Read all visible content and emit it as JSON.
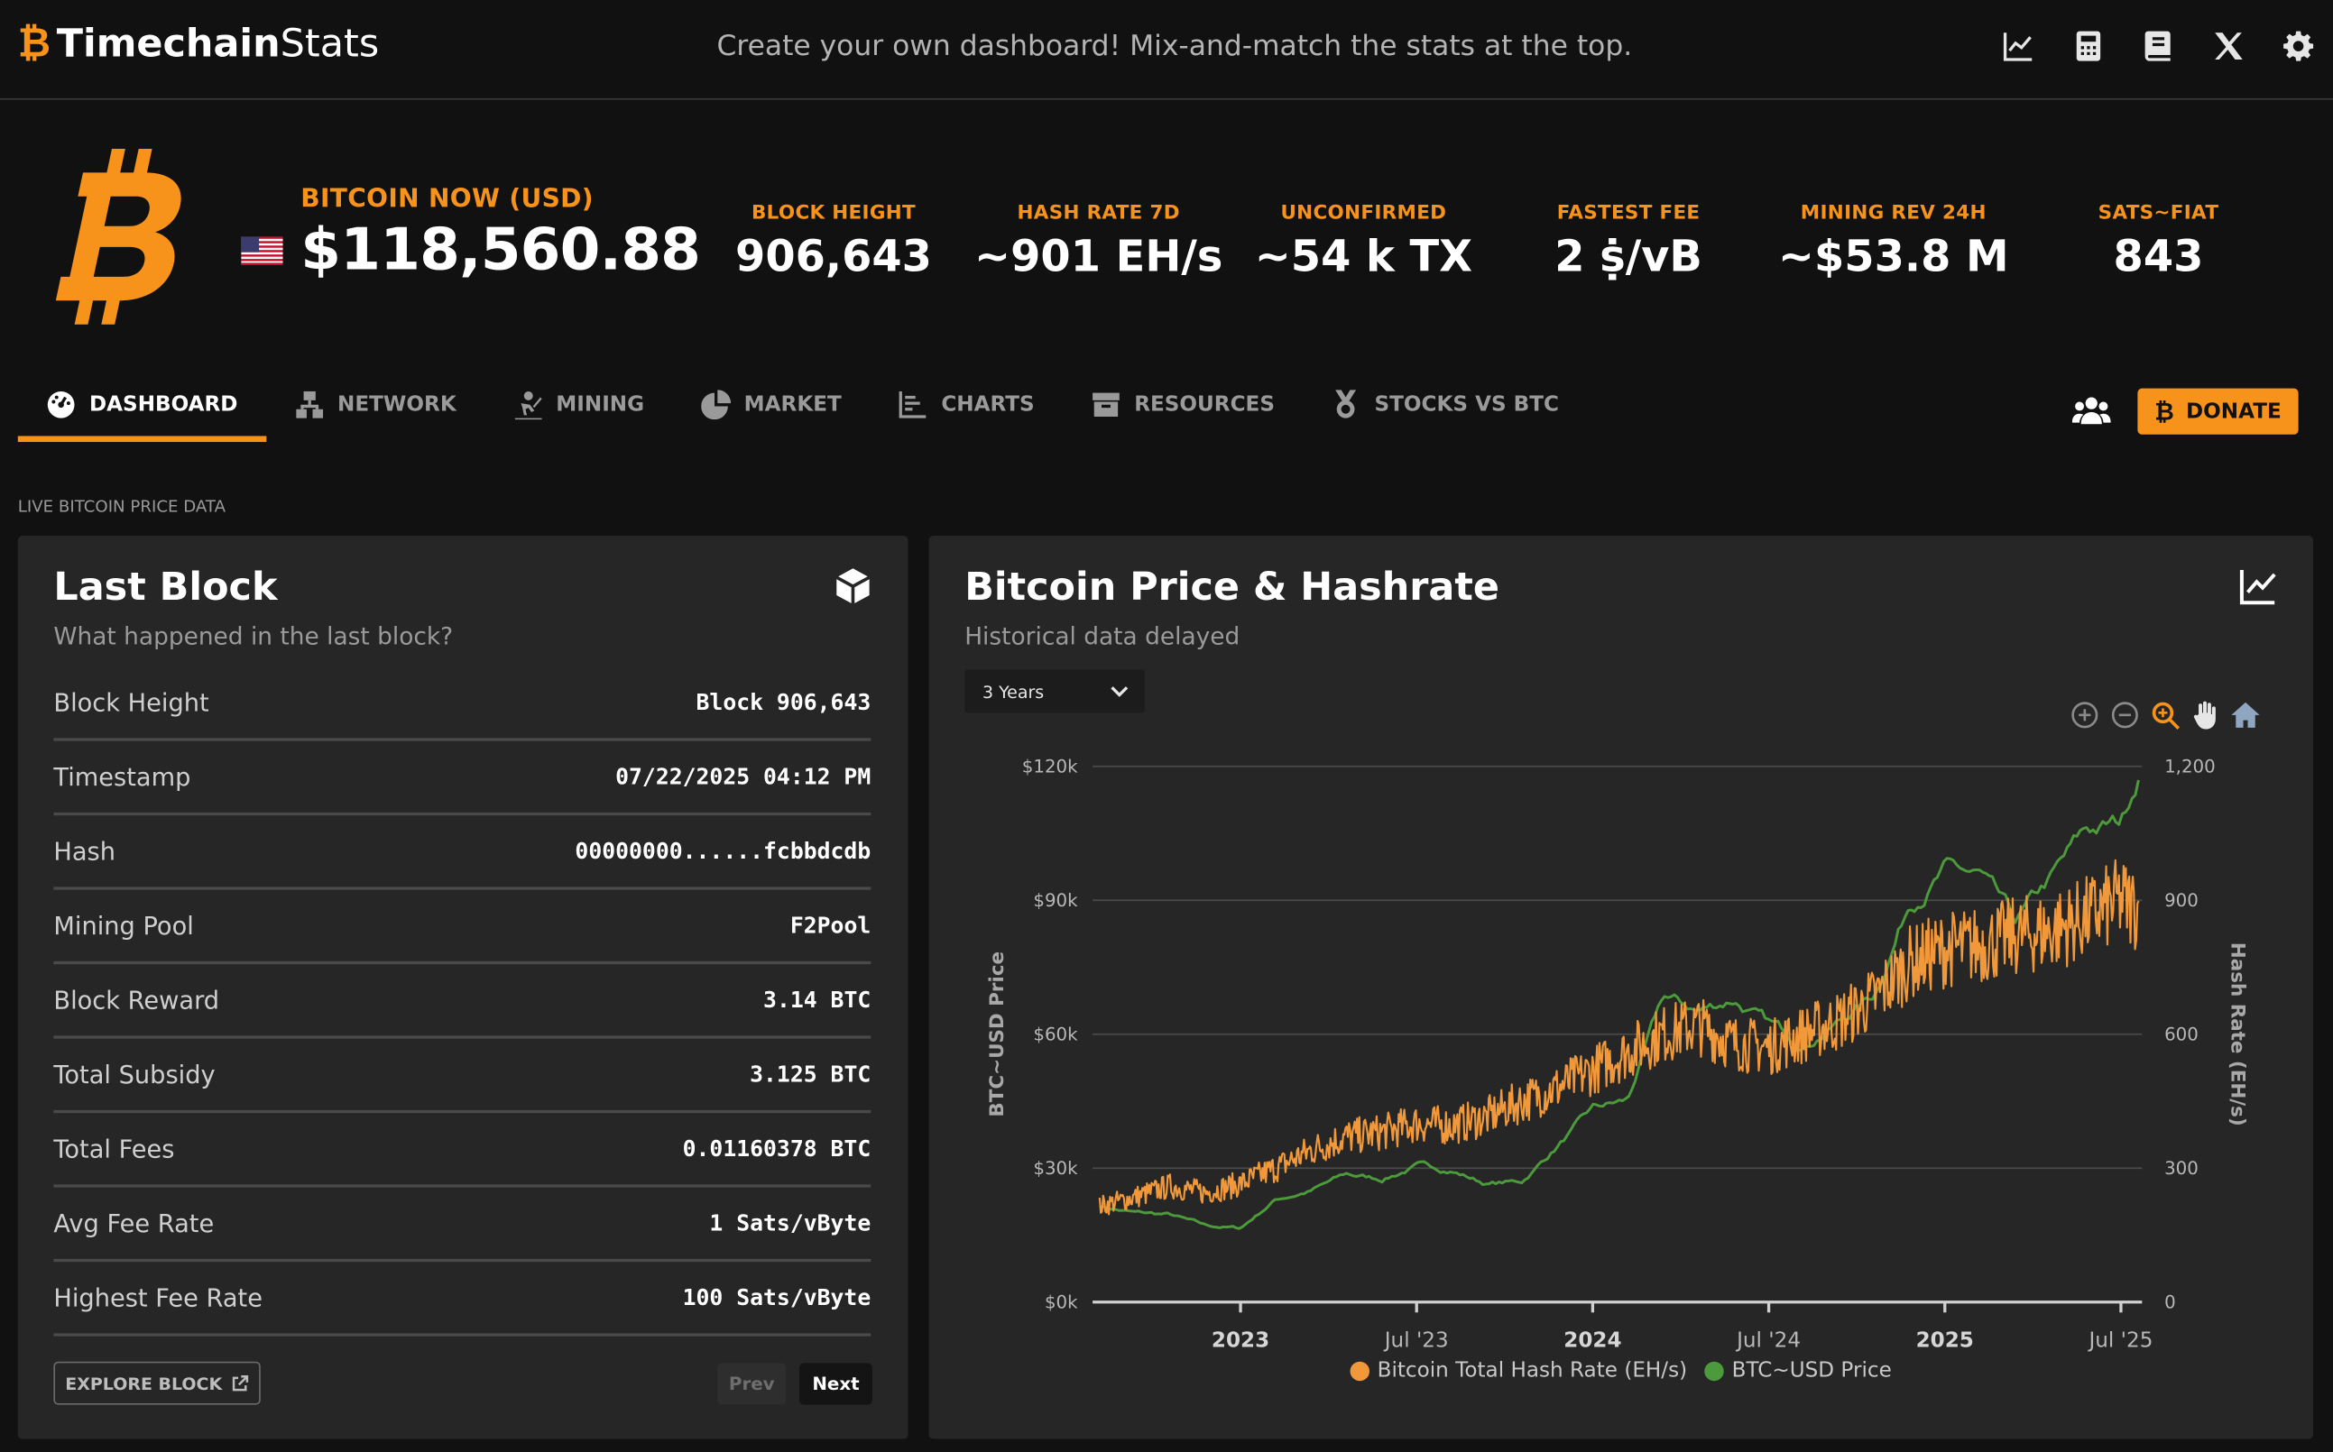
{
  "header": {
    "brand_bold": "Timechain",
    "brand_light": "Stats",
    "tagline": "Create your own dashboard! Mix-and-match the stats at the top.",
    "icons": [
      "chart-line-icon",
      "calculator-icon",
      "book-icon",
      "x-logo-icon",
      "gear-icon"
    ]
  },
  "hero": {
    "now_label": "BITCOIN NOW (USD)",
    "price": "$118,560.88",
    "stats": [
      {
        "label": "BLOCK HEIGHT",
        "value": "906,643"
      },
      {
        "label": "HASH RATE 7D",
        "value": "~901 EH/s"
      },
      {
        "label": "UNCONFIRMED",
        "value": "~54 k TX"
      },
      {
        "label": "FASTEST FEE",
        "value": "2 ṩ/vB"
      },
      {
        "label": "MINING REV 24H",
        "value": "~$53.8 M"
      },
      {
        "label": "SATS~FIAT",
        "value": "843"
      }
    ]
  },
  "nav": {
    "items": [
      {
        "label": "DASHBOARD",
        "icon": "gauge-icon",
        "active": true
      },
      {
        "label": "NETWORK",
        "icon": "network-icon"
      },
      {
        "label": "MINING",
        "icon": "miner-icon"
      },
      {
        "label": "MARKET",
        "icon": "pie-icon"
      },
      {
        "label": "CHARTS",
        "icon": "bar-chart-icon"
      },
      {
        "label": "RESOURCES",
        "icon": "archive-icon"
      },
      {
        "label": "STOCKS VS BTC",
        "icon": "medal-icon"
      }
    ],
    "donate_label": "DONATE"
  },
  "section_label": "LIVE BITCOIN PRICE DATA",
  "last_block": {
    "title": "Last Block",
    "subtitle": "What happened in the last block?",
    "rows": [
      {
        "label": "Block Height",
        "value": "Block 906,643"
      },
      {
        "label": "Timestamp",
        "value": "07/22/2025 04:12 PM"
      },
      {
        "label": "Hash",
        "value": "00000000......fcbbdcdb"
      },
      {
        "label": "Mining Pool",
        "value": "F2Pool"
      },
      {
        "label": "Block Reward",
        "value": "3.14 BTC"
      },
      {
        "label": "Total Subsidy",
        "value": "3.125 BTC"
      },
      {
        "label": "Total Fees",
        "value": "0.01160378 BTC"
      },
      {
        "label": "Avg Fee Rate",
        "value": "1 Sats/vByte"
      },
      {
        "label": "Highest Fee Rate",
        "value": "100 Sats/vByte"
      }
    ],
    "explore_label": "EXPLORE BLOCK",
    "prev_label": "Prev",
    "next_label": "Next"
  },
  "price_chart": {
    "title": "Bitcoin Price & Hashrate",
    "subtitle": "Historical data delayed",
    "range_selected": "3 Years",
    "toolbar_icons": [
      "zoom-in-icon",
      "zoom-out-icon",
      "zoom-select-icon",
      "pan-hand-icon",
      "reset-home-icon"
    ]
  },
  "chart_data": {
    "type": "line",
    "title": "",
    "xlabel": "",
    "ylabel_left": "BTC~USD Price",
    "ylabel_right": "Hash Rate (EH/s)",
    "x_ticks": [
      "2023",
      "Jul '23",
      "2024",
      "Jul '24",
      "2025",
      "Jul '25"
    ],
    "x_ticks_bold": [
      true,
      false,
      true,
      false,
      true,
      false
    ],
    "x_tick_dates": [
      2023.0,
      2023.5,
      2024.0,
      2024.5,
      2025.0,
      2025.5
    ],
    "xlim": [
      2022.58,
      2025.56
    ],
    "y_left_ticks": [
      "$0k",
      "$30k",
      "$60k",
      "$90k",
      "$120k"
    ],
    "y_left_lim": [
      0,
      120000
    ],
    "y_right_ticks": [
      "0",
      "300",
      "600",
      "900",
      "1,200"
    ],
    "y_right_lim": [
      0,
      1200
    ],
    "grid": true,
    "legend_position": "bottom",
    "series": [
      {
        "name": "Bitcoin Total Hash Rate (EH/s)",
        "axis": "right",
        "color": "#f0983a",
        "points": [
          [
            2022.6,
            215
          ],
          [
            2022.7,
            235
          ],
          [
            2022.8,
            260
          ],
          [
            2022.9,
            245
          ],
          [
            2023.0,
            265
          ],
          [
            2023.1,
            300
          ],
          [
            2023.2,
            340
          ],
          [
            2023.3,
            370
          ],
          [
            2023.4,
            380
          ],
          [
            2023.5,
            400
          ],
          [
            2023.6,
            395
          ],
          [
            2023.7,
            415
          ],
          [
            2023.8,
            450
          ],
          [
            2023.9,
            480
          ],
          [
            2024.0,
            520
          ],
          [
            2024.1,
            560
          ],
          [
            2024.2,
            600
          ],
          [
            2024.3,
            620
          ],
          [
            2024.4,
            580
          ],
          [
            2024.5,
            570
          ],
          [
            2024.6,
            600
          ],
          [
            2024.7,
            630
          ],
          [
            2024.8,
            680
          ],
          [
            2024.9,
            760
          ],
          [
            2025.0,
            790
          ],
          [
            2025.1,
            800
          ],
          [
            2025.2,
            820
          ],
          [
            2025.3,
            830
          ],
          [
            2025.4,
            860
          ],
          [
            2025.5,
            900
          ],
          [
            2025.55,
            880
          ]
        ]
      },
      {
        "name": "BTC~USD Price",
        "axis": "left",
        "color": "#4c9a3c",
        "points": [
          [
            2022.6,
            21500
          ],
          [
            2022.7,
            20000
          ],
          [
            2022.8,
            19500
          ],
          [
            2022.9,
            17000
          ],
          [
            2023.0,
            16500
          ],
          [
            2023.1,
            23000
          ],
          [
            2023.2,
            25000
          ],
          [
            2023.3,
            28500
          ],
          [
            2023.4,
            27500
          ],
          [
            2023.5,
            30500
          ],
          [
            2023.6,
            29500
          ],
          [
            2023.7,
            26500
          ],
          [
            2023.8,
            27000
          ],
          [
            2023.9,
            35000
          ],
          [
            2024.0,
            43000
          ],
          [
            2024.1,
            45000
          ],
          [
            2024.2,
            68000
          ],
          [
            2024.3,
            65000
          ],
          [
            2024.4,
            68000
          ],
          [
            2024.5,
            62000
          ],
          [
            2024.6,
            58000
          ],
          [
            2024.7,
            63000
          ],
          [
            2024.8,
            69000
          ],
          [
            2024.9,
            90000
          ],
          [
            2025.0,
            97000
          ],
          [
            2025.1,
            95000
          ],
          [
            2025.2,
            84000
          ],
          [
            2025.3,
            94000
          ],
          [
            2025.4,
            105000
          ],
          [
            2025.5,
            107000
          ],
          [
            2025.55,
            119000
          ]
        ]
      }
    ]
  }
}
